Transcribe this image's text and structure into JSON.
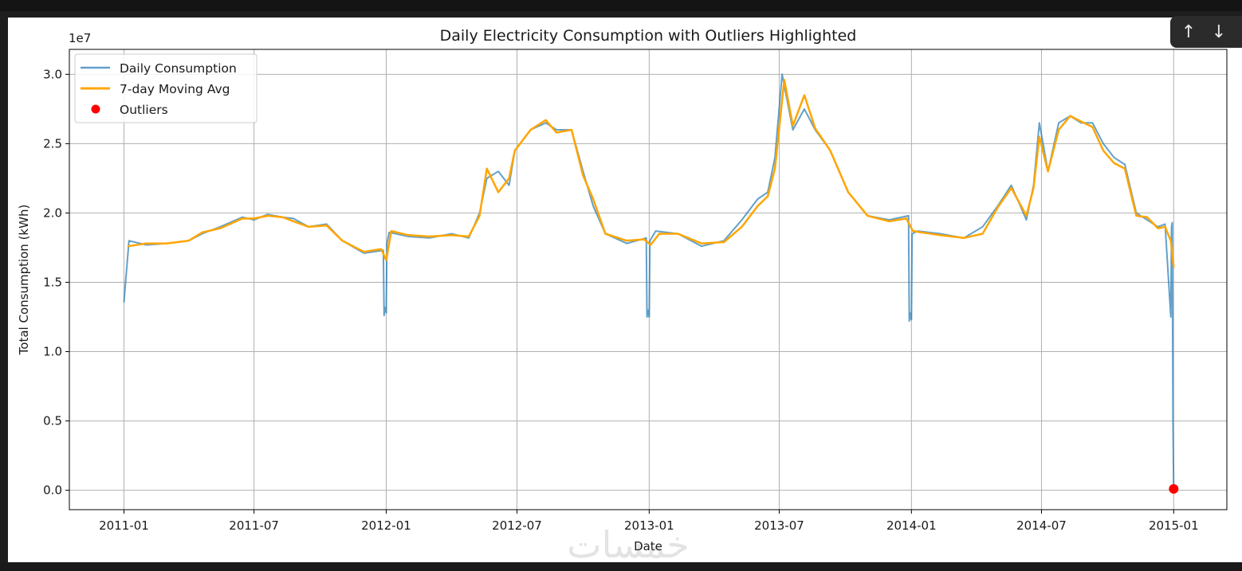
{
  "chart_data": {
    "type": "line",
    "title": "Daily Electricity Consumption with Outliers Highlighted",
    "xlabel": "Date",
    "ylabel": "Total Consumption (kWh)",
    "y_offset_label": "1e7",
    "y_multiplier": 10000000,
    "xlim": [
      "2010-10-17",
      "2015-03-16"
    ],
    "ylim": [
      -1400000,
      31800000
    ],
    "x_ticks": [
      "2011-01",
      "2011-07",
      "2012-01",
      "2012-07",
      "2013-01",
      "2013-07",
      "2014-01",
      "2014-07",
      "2015-01"
    ],
    "y_ticks": [
      0.0,
      0.5,
      1.0,
      1.5,
      2.0,
      2.5,
      3.0
    ],
    "y_tick_labels": [
      "0.0",
      "0.5",
      "1.0",
      "1.5",
      "2.0",
      "2.5",
      "3.0"
    ],
    "grid": true,
    "legend_position": "upper-left",
    "series": [
      {
        "name": "Daily Consumption",
        "kind": "line",
        "color": "#1f77b4",
        "opacity": 0.7,
        "x": [
          "2011-01-01",
          "2011-01-08",
          "2011-02-01",
          "2011-03-01",
          "2011-04-01",
          "2011-04-20",
          "2011-05-15",
          "2011-06-15",
          "2011-07-01",
          "2011-07-20",
          "2011-08-10",
          "2011-08-25",
          "2011-09-15",
          "2011-10-10",
          "2011-11-01",
          "2011-12-01",
          "2011-12-28",
          "2011-12-29",
          "2011-12-30",
          "2012-01-01",
          "2012-01-02",
          "2012-01-05",
          "2012-02-01",
          "2012-03-01",
          "2012-04-01",
          "2012-04-25",
          "2012-05-10",
          "2012-05-20",
          "2012-06-05",
          "2012-06-20",
          "2012-06-28",
          "2012-07-20",
          "2012-08-10",
          "2012-08-25",
          "2012-09-15",
          "2012-10-01",
          "2012-10-15",
          "2012-11-01",
          "2012-12-01",
          "2012-12-28",
          "2012-12-29",
          "2012-12-30",
          "2013-01-01",
          "2013-01-02",
          "2013-01-10",
          "2013-02-10",
          "2013-03-15",
          "2013-04-15",
          "2013-05-10",
          "2013-06-01",
          "2013-06-15",
          "2013-06-25",
          "2013-07-05",
          "2013-07-20",
          "2013-08-05",
          "2013-08-20",
          "2013-09-10",
          "2013-10-05",
          "2013-11-01",
          "2013-12-01",
          "2013-12-28",
          "2013-12-29",
          "2013-12-30",
          "2014-01-01",
          "2014-01-02",
          "2014-01-10",
          "2014-02-10",
          "2014-03-15",
          "2014-04-10",
          "2014-05-01",
          "2014-05-20",
          "2014-06-10",
          "2014-06-20",
          "2014-06-28",
          "2014-07-10",
          "2014-07-25",
          "2014-08-10",
          "2014-08-25",
          "2014-09-10",
          "2014-09-25",
          "2014-10-10",
          "2014-10-25",
          "2014-11-10",
          "2014-11-25",
          "2014-12-10",
          "2014-12-20",
          "2014-12-28",
          "2014-12-29",
          "2014-12-30",
          "2014-12-31",
          "2015-01-01"
        ],
        "y": [
          13600000,
          18000000,
          17700000,
          17800000,
          18000000,
          18500000,
          19000000,
          19700000,
          19500000,
          19900000,
          19700000,
          19600000,
          19000000,
          19200000,
          18000000,
          17100000,
          17300000,
          12600000,
          13200000,
          12800000,
          17800000,
          18600000,
          18300000,
          18200000,
          18500000,
          18200000,
          20000000,
          22500000,
          23000000,
          22000000,
          24500000,
          26000000,
          26500000,
          26000000,
          26000000,
          23000000,
          20500000,
          18500000,
          17800000,
          18200000,
          12500000,
          13000000,
          12500000,
          18000000,
          18700000,
          18500000,
          17600000,
          18000000,
          19500000,
          21000000,
          21500000,
          24000000,
          30000000,
          26000000,
          27500000,
          26000000,
          24500000,
          21500000,
          19800000,
          19500000,
          19800000,
          12200000,
          12800000,
          12300000,
          18500000,
          18700000,
          18500000,
          18200000,
          19000000,
          20500000,
          22000000,
          19500000,
          22000000,
          26500000,
          23000000,
          26500000,
          27000000,
          26500000,
          26500000,
          25000000,
          24000000,
          23500000,
          20000000,
          19500000,
          19000000,
          19200000,
          12500000,
          19000000,
          19300000,
          5000000,
          100000
        ]
      },
      {
        "name": "7-day Moving Avg",
        "kind": "line",
        "color": "#ffa500",
        "x": [
          "2011-01-07",
          "2011-02-01",
          "2011-03-01",
          "2011-04-01",
          "2011-04-20",
          "2011-05-15",
          "2011-06-15",
          "2011-07-01",
          "2011-07-20",
          "2011-08-10",
          "2011-08-25",
          "2011-09-15",
          "2011-10-10",
          "2011-11-01",
          "2011-12-01",
          "2011-12-25",
          "2012-01-01",
          "2012-01-08",
          "2012-02-01",
          "2012-03-01",
          "2012-04-01",
          "2012-04-25",
          "2012-05-10",
          "2012-05-20",
          "2012-06-05",
          "2012-06-20",
          "2012-06-28",
          "2012-07-20",
          "2012-08-10",
          "2012-08-25",
          "2012-09-15",
          "2012-10-01",
          "2012-10-15",
          "2012-11-01",
          "2012-12-01",
          "2012-12-25",
          "2013-01-03",
          "2013-01-15",
          "2013-02-10",
          "2013-03-15",
          "2013-04-15",
          "2013-05-10",
          "2013-06-01",
          "2013-06-15",
          "2013-06-25",
          "2013-07-08",
          "2013-07-20",
          "2013-08-05",
          "2013-08-20",
          "2013-09-10",
          "2013-10-05",
          "2013-11-01",
          "2013-12-01",
          "2013-12-25",
          "2014-01-03",
          "2014-01-15",
          "2014-02-10",
          "2014-03-15",
          "2014-04-10",
          "2014-05-01",
          "2014-05-20",
          "2014-06-10",
          "2014-06-20",
          "2014-06-28",
          "2014-07-10",
          "2014-07-25",
          "2014-08-10",
          "2014-08-25",
          "2014-09-10",
          "2014-09-25",
          "2014-10-10",
          "2014-10-25",
          "2014-11-10",
          "2014-11-25",
          "2014-12-10",
          "2014-12-20",
          "2014-12-28",
          "2015-01-01"
        ],
        "y": [
          17600000,
          17800000,
          17800000,
          18000000,
          18600000,
          18900000,
          19600000,
          19600000,
          19800000,
          19700000,
          19400000,
          19000000,
          19100000,
          18000000,
          17200000,
          17400000,
          16600000,
          18700000,
          18400000,
          18300000,
          18400000,
          18300000,
          19800000,
          23200000,
          21500000,
          22500000,
          24500000,
          26000000,
          26700000,
          25800000,
          26000000,
          22700000,
          21000000,
          18500000,
          18000000,
          18100000,
          17700000,
          18500000,
          18500000,
          17800000,
          17900000,
          19000000,
          20500000,
          21200000,
          23200000,
          29600000,
          26300000,
          28500000,
          26100000,
          24500000,
          21500000,
          19800000,
          19400000,
          19600000,
          18700000,
          18600000,
          18400000,
          18200000,
          18500000,
          20400000,
          21800000,
          19800000,
          21800000,
          25500000,
          23000000,
          26000000,
          27000000,
          26600000,
          26200000,
          24500000,
          23600000,
          23200000,
          19800000,
          19700000,
          18900000,
          19000000,
          18000000,
          16100000
        ]
      },
      {
        "name": "Outliers",
        "kind": "scatter",
        "color": "#ff0000",
        "x": [
          "2015-01-01"
        ],
        "y": [
          100000
        ]
      }
    ]
  },
  "watermark": "خمسات",
  "nav": {
    "up_glyph": "↑",
    "down_glyph": "↓"
  }
}
